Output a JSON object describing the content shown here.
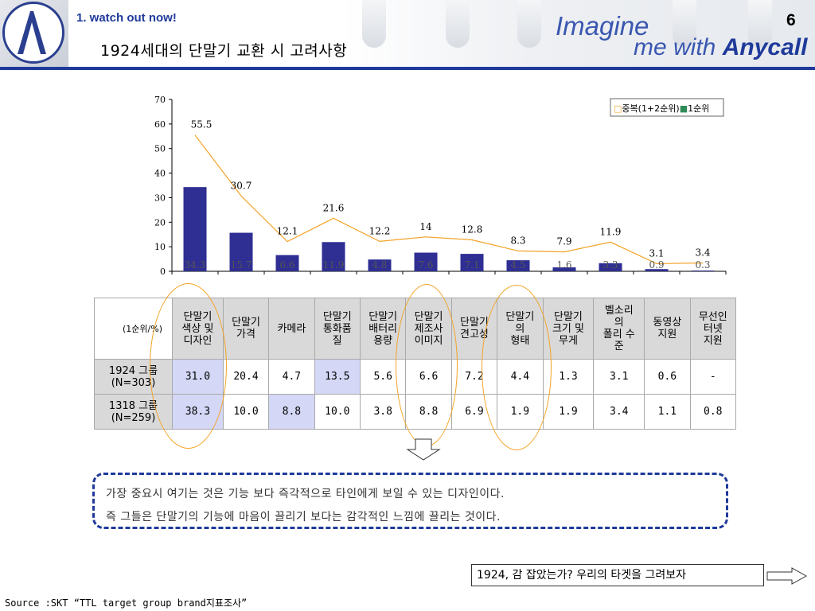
{
  "header": {
    "section_label": "1. watch out now!",
    "title": "1924세대의 단말기 교환 시 고려사항",
    "page_number": "6",
    "brand_line1": "Imagine",
    "brand_line2_prefix": "me with ",
    "brand_line2_name": "Anycall"
  },
  "chart_data": {
    "type": "bar",
    "categories": [
      "단말기 색상 및 디자인",
      "단말기 가격",
      "카메라",
      "단말기 통화품질",
      "단말기 배터리 용량",
      "단말기 제조사 이미지",
      "단말기 견고성",
      "단말기의 형태",
      "단말기 크기 및 무게",
      "벨소리의 폴리 수준",
      "동영상 지원",
      "무선인터넷 지원"
    ],
    "series": [
      {
        "name": "1순위",
        "type": "bar",
        "color": "#2e2e93",
        "values": [
          34.3,
          15.7,
          6.6,
          11.9,
          4.8,
          7.6,
          7.1,
          4.5,
          1.6,
          3.3,
          0.9,
          0.3
        ]
      },
      {
        "name": "중복(1+2순위)",
        "type": "line",
        "color": "#f3a326",
        "values": [
          55.5,
          30.7,
          12.1,
          21.6,
          12.2,
          14,
          12.8,
          8.3,
          7.9,
          11.9,
          3.1,
          3.4
        ]
      }
    ],
    "ylim": [
      0,
      70
    ],
    "yticks": [
      0,
      10,
      20,
      30,
      40,
      50,
      60,
      70
    ],
    "legend_position": "top-right",
    "legend_marker_line": "□",
    "legend_marker_bar": "■"
  },
  "table": {
    "unit_label": "(1순위/%)",
    "columns": [
      [
        "단말기",
        "색상 및",
        "디자인"
      ],
      [
        "단말기",
        "가격"
      ],
      [
        "카메라"
      ],
      [
        "단말기",
        "통화품",
        "질"
      ],
      [
        "단말기",
        "배터리",
        "용량"
      ],
      [
        "단말기",
        "제조사",
        "이미지"
      ],
      [
        "단말기",
        "견고성"
      ],
      [
        "단말기",
        "의",
        "형태"
      ],
      [
        "단말기",
        "크기 및",
        "무게"
      ],
      [
        "벨소리",
        "의",
        "폴리 수",
        "준"
      ],
      [
        "동영상",
        "지원"
      ],
      [
        "무선인",
        "터넷",
        "지원"
      ]
    ],
    "rows": [
      {
        "label": [
          "1924 그룹",
          "(N=303)"
        ],
        "values": [
          "31.0",
          "20.4",
          "4.7",
          "13.5",
          "5.6",
          "6.6",
          "7.2",
          "4.4",
          "1.3",
          "3.1",
          "0.6",
          "-"
        ],
        "highlight": [
          0,
          3
        ]
      },
      {
        "label": [
          "1318 그룹",
          "(N=259)"
        ],
        "values": [
          "38.3",
          "10.0",
          "8.8",
          "10.0",
          "3.8",
          "8.8",
          "6.9",
          "1.9",
          "1.9",
          "3.4",
          "1.1",
          "0.8"
        ],
        "highlight": [
          0,
          2
        ]
      }
    ]
  },
  "callout": {
    "line1": "가장 중요시 여기는 것은 기능 보다 즉각적으로 타인에게 보일 수 있는 디자인이다.",
    "line2": "즉 그들은 단말기의 기능에 마음이 끌리기 보다는 감각적인 느낌에 끌리는 것이다."
  },
  "target_box": "1924, 감 잡았는가? 우리의 타겟을 그려보자",
  "source": "Source :SKT  “TTL target group brand지표조사”",
  "colors": {
    "accent": "#1f3a9b",
    "highlight_ellipse": "#f3a326",
    "cell_highlight": "#d4d7f5"
  }
}
